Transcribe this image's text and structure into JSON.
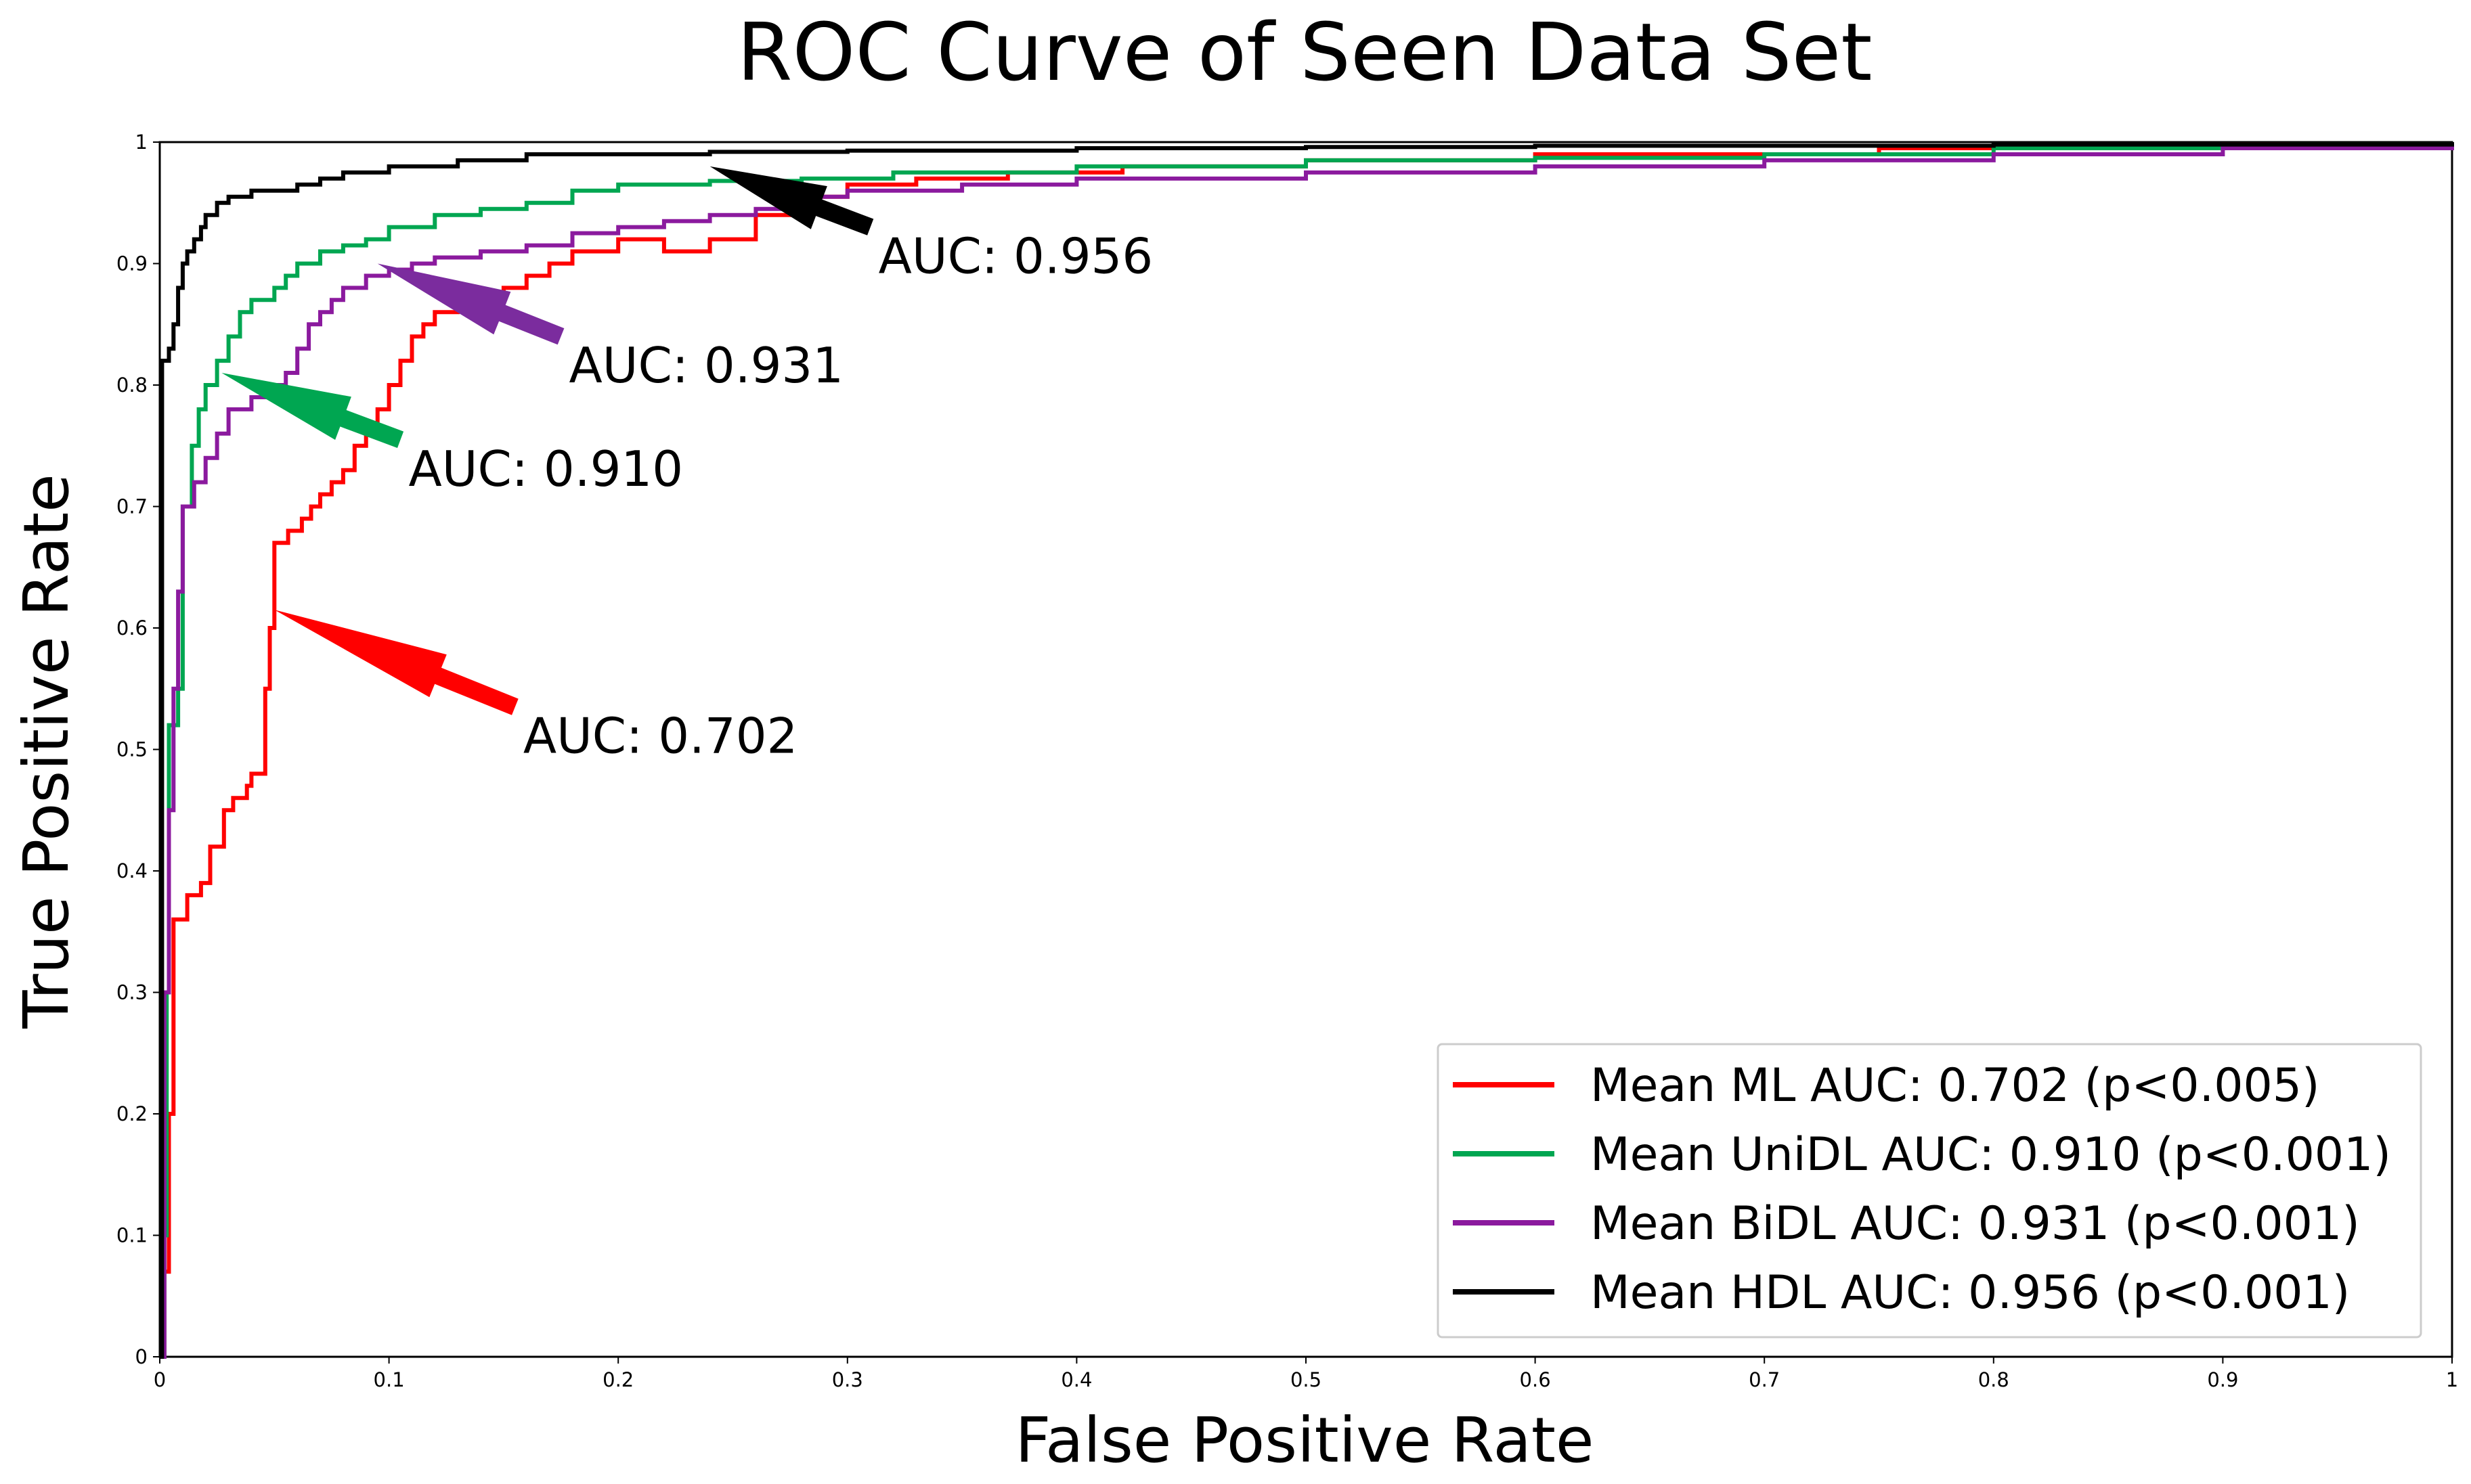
{
  "chart_data": {
    "type": "line",
    "title": "ROC Curve of Seen Data Set",
    "xlabel": "False Positive Rate",
    "ylabel": "True Positive Rate",
    "xlim": [
      0,
      1
    ],
    "ylim": [
      0,
      1
    ],
    "grid": false,
    "legend_position": "bottom-right",
    "x_ticks": [
      "0",
      "0.1",
      "0.2",
      "0.3",
      "0.4",
      "0.5",
      "0.6",
      "0.7",
      "0.8",
      "0.9",
      "1"
    ],
    "y_ticks": [
      "0",
      "0.1",
      "0.2",
      "0.3",
      "0.4",
      "0.5",
      "0.6",
      "0.7",
      "0.8",
      "0.9",
      "1"
    ],
    "series": [
      {
        "name": "Mean ML AUC: 0.702 (p<0.005)",
        "color": "#ff0000",
        "annotation": "AUC: 0.702",
        "points": [
          [
            0,
            0
          ],
          [
            0.002,
            0.07
          ],
          [
            0.004,
            0.2
          ],
          [
            0.006,
            0.36
          ],
          [
            0.01,
            0.36
          ],
          [
            0.012,
            0.38
          ],
          [
            0.018,
            0.39
          ],
          [
            0.022,
            0.42
          ],
          [
            0.028,
            0.45
          ],
          [
            0.032,
            0.46
          ],
          [
            0.038,
            0.47
          ],
          [
            0.04,
            0.48
          ],
          [
            0.045,
            0.48
          ],
          [
            0.046,
            0.55
          ],
          [
            0.048,
            0.6
          ],
          [
            0.05,
            0.67
          ],
          [
            0.056,
            0.68
          ],
          [
            0.062,
            0.69
          ],
          [
            0.066,
            0.7
          ],
          [
            0.07,
            0.71
          ],
          [
            0.075,
            0.72
          ],
          [
            0.08,
            0.73
          ],
          [
            0.085,
            0.75
          ],
          [
            0.09,
            0.76
          ],
          [
            0.095,
            0.78
          ],
          [
            0.1,
            0.8
          ],
          [
            0.105,
            0.82
          ],
          [
            0.11,
            0.84
          ],
          [
            0.115,
            0.85
          ],
          [
            0.12,
            0.86
          ],
          [
            0.13,
            0.87
          ],
          [
            0.14,
            0.875
          ],
          [
            0.15,
            0.88
          ],
          [
            0.16,
            0.89
          ],
          [
            0.17,
            0.9
          ],
          [
            0.18,
            0.91
          ],
          [
            0.2,
            0.92
          ],
          [
            0.22,
            0.91
          ],
          [
            0.24,
            0.92
          ],
          [
            0.26,
            0.94
          ],
          [
            0.28,
            0.955
          ],
          [
            0.3,
            0.965
          ],
          [
            0.33,
            0.97
          ],
          [
            0.37,
            0.975
          ],
          [
            0.42,
            0.98
          ],
          [
            0.5,
            0.985
          ],
          [
            0.6,
            0.99
          ],
          [
            0.75,
            0.995
          ],
          [
            0.9,
            0.998
          ],
          [
            1,
            1
          ]
        ]
      },
      {
        "name": "Mean UniDL AUC: 0.910 (p<0.001)",
        "color": "#00a651",
        "annotation": "AUC: 0.910",
        "points": [
          [
            0,
            0
          ],
          [
            0.002,
            0.1
          ],
          [
            0.003,
            0.3
          ],
          [
            0.004,
            0.52
          ],
          [
            0.008,
            0.55
          ],
          [
            0.01,
            0.7
          ],
          [
            0.014,
            0.75
          ],
          [
            0.017,
            0.78
          ],
          [
            0.02,
            0.8
          ],
          [
            0.025,
            0.82
          ],
          [
            0.03,
            0.84
          ],
          [
            0.035,
            0.86
          ],
          [
            0.04,
            0.87
          ],
          [
            0.05,
            0.88
          ],
          [
            0.055,
            0.89
          ],
          [
            0.06,
            0.9
          ],
          [
            0.07,
            0.91
          ],
          [
            0.08,
            0.915
          ],
          [
            0.09,
            0.92
          ],
          [
            0.1,
            0.93
          ],
          [
            0.12,
            0.94
          ],
          [
            0.14,
            0.945
          ],
          [
            0.16,
            0.95
          ],
          [
            0.18,
            0.96
          ],
          [
            0.2,
            0.965
          ],
          [
            0.24,
            0.968
          ],
          [
            0.28,
            0.97
          ],
          [
            0.32,
            0.975
          ],
          [
            0.4,
            0.98
          ],
          [
            0.5,
            0.985
          ],
          [
            0.6,
            0.987
          ],
          [
            0.7,
            0.99
          ],
          [
            0.8,
            0.995
          ],
          [
            0.93,
            0.998
          ],
          [
            1,
            1
          ]
        ]
      },
      {
        "name": "Mean BiDL AUC: 0.931 (p<0.001)",
        "color": "#8b1a9e",
        "annotation": "AUC: 0.931",
        "points": [
          [
            0,
            0
          ],
          [
            0.002,
            0.3
          ],
          [
            0.004,
            0.45
          ],
          [
            0.006,
            0.55
          ],
          [
            0.008,
            0.63
          ],
          [
            0.01,
            0.7
          ],
          [
            0.015,
            0.72
          ],
          [
            0.02,
            0.74
          ],
          [
            0.025,
            0.76
          ],
          [
            0.03,
            0.78
          ],
          [
            0.04,
            0.79
          ],
          [
            0.05,
            0.8
          ],
          [
            0.055,
            0.81
          ],
          [
            0.06,
            0.83
          ],
          [
            0.065,
            0.85
          ],
          [
            0.07,
            0.86
          ],
          [
            0.075,
            0.87
          ],
          [
            0.08,
            0.88
          ],
          [
            0.09,
            0.89
          ],
          [
            0.1,
            0.895
          ],
          [
            0.11,
            0.9
          ],
          [
            0.12,
            0.905
          ],
          [
            0.14,
            0.91
          ],
          [
            0.16,
            0.915
          ],
          [
            0.18,
            0.925
          ],
          [
            0.2,
            0.93
          ],
          [
            0.22,
            0.935
          ],
          [
            0.24,
            0.94
          ],
          [
            0.26,
            0.945
          ],
          [
            0.28,
            0.955
          ],
          [
            0.3,
            0.96
          ],
          [
            0.35,
            0.965
          ],
          [
            0.4,
            0.97
          ],
          [
            0.5,
            0.975
          ],
          [
            0.6,
            0.98
          ],
          [
            0.7,
            0.985
          ],
          [
            0.8,
            0.99
          ],
          [
            0.9,
            0.995
          ],
          [
            1,
            1
          ]
        ]
      },
      {
        "name": "Mean HDL AUC: 0.956 (p<0.001)",
        "color": "#000000",
        "annotation": "AUC: 0.956",
        "points": [
          [
            0,
            0
          ],
          [
            0.001,
            0.82
          ],
          [
            0.004,
            0.83
          ],
          [
            0.006,
            0.85
          ],
          [
            0.008,
            0.88
          ],
          [
            0.01,
            0.9
          ],
          [
            0.012,
            0.91
          ],
          [
            0.015,
            0.92
          ],
          [
            0.018,
            0.93
          ],
          [
            0.02,
            0.94
          ],
          [
            0.025,
            0.95
          ],
          [
            0.03,
            0.955
          ],
          [
            0.04,
            0.96
          ],
          [
            0.05,
            0.96
          ],
          [
            0.06,
            0.965
          ],
          [
            0.07,
            0.97
          ],
          [
            0.08,
            0.975
          ],
          [
            0.1,
            0.98
          ],
          [
            0.13,
            0.985
          ],
          [
            0.16,
            0.99
          ],
          [
            0.2,
            0.99
          ],
          [
            0.24,
            0.992
          ],
          [
            0.3,
            0.993
          ],
          [
            0.4,
            0.995
          ],
          [
            0.5,
            0.996
          ],
          [
            0.6,
            0.997
          ],
          [
            0.8,
            0.998
          ],
          [
            1,
            1
          ]
        ]
      }
    ],
    "annotations": [
      {
        "text": "AUC: 0.956",
        "color": "#000000",
        "target": [
          0.24,
          0.98
        ],
        "tail": [
          0.31,
          0.93
        ]
      },
      {
        "text": "AUC: 0.931",
        "color": "#7b2c9e",
        "target": [
          0.095,
          0.9
        ],
        "tail": [
          0.175,
          0.84
        ]
      },
      {
        "text": "AUC: 0.910",
        "color": "#00a651",
        "target": [
          0.027,
          0.81
        ],
        "tail": [
          0.105,
          0.755
        ]
      },
      {
        "text": "AUC: 0.702",
        "color": "#ff0000",
        "target": [
          0.05,
          0.615
        ],
        "tail": [
          0.155,
          0.535
        ]
      }
    ]
  }
}
